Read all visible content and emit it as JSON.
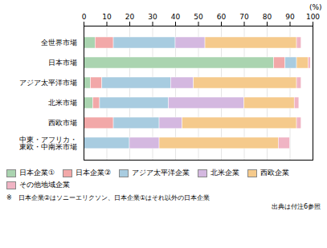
{
  "chart_data": {
    "type": "bar",
    "orientation": "horizontal",
    "stacked": true,
    "categories": [
      "全世界市場",
      "日本市場",
      "アジア太平洋市場",
      "北米市場",
      "西欧市場",
      "中東・アフリカ・\n東欧・中南米市場"
    ],
    "series": [
      {
        "name": "日本企業①",
        "color": "#aad4b0",
        "values": [
          5,
          83,
          3,
          4,
          0,
          0
        ]
      },
      {
        "name": "日本企業②",
        "color": "#f2a8a8",
        "values": [
          8,
          5,
          5,
          3,
          13,
          0
        ]
      },
      {
        "name": "アジア太平洋企業",
        "color": "#a8cce0",
        "values": [
          27,
          5,
          30,
          30,
          20,
          20
        ]
      },
      {
        "name": "北米企業",
        "color": "#d4b8e0",
        "values": [
          13,
          0,
          10,
          33,
          10,
          13
        ]
      },
      {
        "name": "西欧企業",
        "color": "#f5ca8c",
        "values": [
          40,
          5,
          45,
          22,
          50,
          52
        ]
      },
      {
        "name": "その他地域企業",
        "color": "#f0b4c4",
        "values": [
          2,
          1,
          2,
          2,
          2,
          5
        ]
      }
    ],
    "xlim": [
      0,
      100
    ],
    "xticks": [
      0,
      10,
      20,
      30,
      40,
      50,
      60,
      70,
      80,
      90,
      100
    ],
    "xlabel": "(%)",
    "grid": true,
    "legend": "bottom",
    "annotations": [
      "※　日本企業②はソニーエリクソン、日本企業①はそれ以外の日本企業",
      "出典は付注6参照"
    ]
  }
}
